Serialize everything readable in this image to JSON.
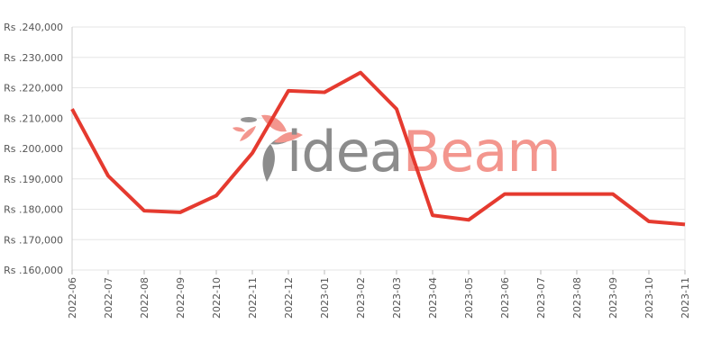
{
  "watermark": {
    "part1": "idea",
    "part2": "Beam",
    "color1": "#808080",
    "color2": "#f28b82"
  },
  "chart_data": {
    "type": "line",
    "x": [
      "2022-06",
      "2022-07",
      "2022-08",
      "2022-09",
      "2022-10",
      "2022-11",
      "2022-12",
      "2023-01",
      "2023-02",
      "2023-03",
      "2023-04",
      "2023-05",
      "2023-06",
      "2023-07",
      "2023-08",
      "2023-09",
      "2023-10",
      "2023-11"
    ],
    "series": [
      {
        "values": [
          213000,
          191000,
          179500,
          179000,
          184500,
          198500,
          219000,
          218500,
          225000,
          213000,
          178000,
          176500,
          185000,
          185000,
          185000,
          185000,
          176000,
          175000
        ],
        "color": "#e53a2f"
      }
    ],
    "yticks": [
      160000,
      170000,
      180000,
      190000,
      200000,
      210000,
      220000,
      230000,
      240000
    ],
    "ytick_labels": [
      "Rs .160,000",
      "Rs .170,000",
      "Rs .180,000",
      "Rs .190,000",
      "Rs .200,000",
      "Rs .210,000",
      "Rs .220,000",
      "Rs .230,000",
      "Rs .240,000"
    ],
    "ylim": [
      160000,
      240000
    ],
    "grid": true,
    "title": "",
    "xlabel": "",
    "ylabel": ""
  }
}
